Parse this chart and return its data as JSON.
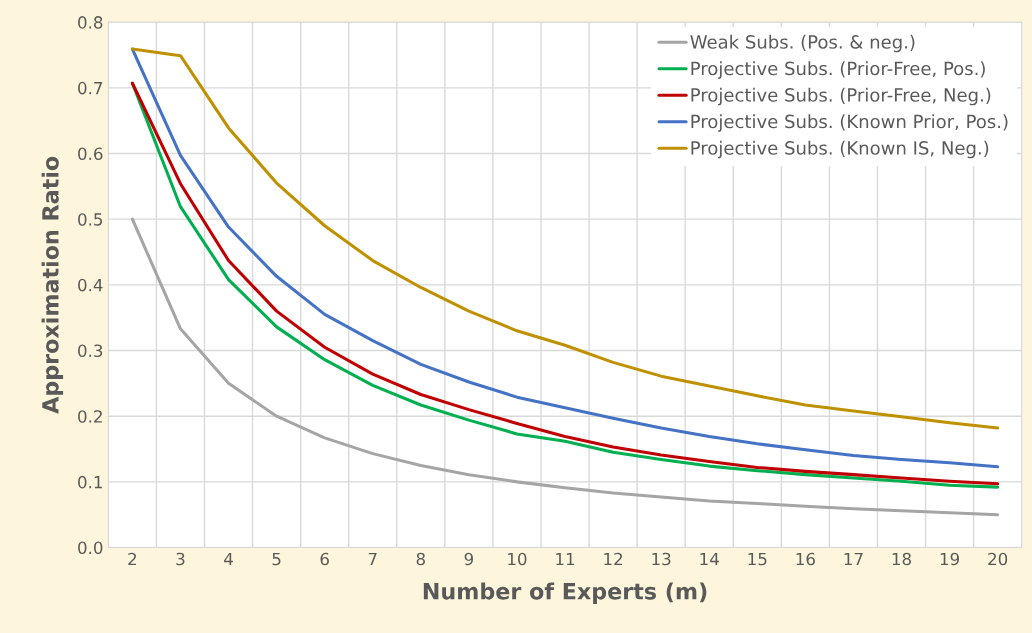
{
  "chart_data": {
    "type": "line",
    "xlabel": "Number of Experts (m)",
    "ylabel": "Approximation Ratio",
    "categories": [
      "2",
      "3",
      "4",
      "5",
      "6",
      "7",
      "8",
      "9",
      "10",
      "11",
      "12",
      "13",
      "14",
      "15",
      "16",
      "17",
      "18",
      "19",
      "20"
    ],
    "series": [
      {
        "name": "Weak Subs. (Pos. & neg.)",
        "color": "#a5a5a5",
        "values": [
          0.5,
          0.333,
          0.25,
          0.2,
          0.167,
          0.143,
          0.125,
          0.111,
          0.1,
          0.091,
          0.083,
          0.077,
          0.071,
          0.067,
          0.063,
          0.059,
          0.056,
          0.053,
          0.05
        ]
      },
      {
        "name": "Projective Subs. (Prior-Free, Pos.)",
        "color": "#00b050",
        "values": [
          0.707,
          0.519,
          0.408,
          0.336,
          0.286,
          0.247,
          0.217,
          0.194,
          0.173,
          0.162,
          0.145,
          0.134,
          0.124,
          0.117,
          0.111,
          0.106,
          0.101,
          0.095,
          0.092
        ]
      },
      {
        "name": "Projective Subs. (Prior-Free, Neg.)",
        "color": "#c00000",
        "values": [
          0.707,
          0.554,
          0.437,
          0.36,
          0.305,
          0.264,
          0.233,
          0.21,
          0.189,
          0.169,
          0.153,
          0.141,
          0.131,
          0.122,
          0.116,
          0.111,
          0.106,
          0.101,
          0.097
        ]
      },
      {
        "name": "Projective Subs. (Known Prior, Pos.)",
        "color": "#4472c4",
        "values": [
          0.759,
          0.597,
          0.488,
          0.413,
          0.355,
          0.315,
          0.279,
          0.252,
          0.229,
          0.213,
          0.197,
          0.182,
          0.169,
          0.158,
          0.149,
          0.14,
          0.134,
          0.129,
          0.123
        ]
      },
      {
        "name": "Projective Subs. (Known IS, Neg.)",
        "color": "#bf9000",
        "values": [
          0.759,
          0.749,
          0.639,
          0.555,
          0.49,
          0.437,
          0.396,
          0.36,
          0.33,
          0.308,
          0.282,
          0.261,
          0.246,
          0.231,
          0.217,
          0.208,
          0.199,
          0.19,
          0.182
        ]
      }
    ],
    "ylim": [
      0,
      0.8
    ],
    "yticks": [
      {
        "value": 0,
        "label": "0.0"
      },
      {
        "value": 0.1,
        "label": "0.1"
      },
      {
        "value": 0.2,
        "label": "0.2"
      },
      {
        "value": 0.3,
        "label": "0.3"
      },
      {
        "value": 0.4,
        "label": "0.4"
      },
      {
        "value": 0.5,
        "label": "0.5"
      },
      {
        "value": 0.6,
        "label": "0.6"
      },
      {
        "value": 0.7,
        "label": "0.7"
      },
      {
        "value": 0.8,
        "label": "0.8"
      }
    ],
    "grid": true,
    "legend": "top right",
    "marker": "none",
    "line_style": "solid"
  }
}
